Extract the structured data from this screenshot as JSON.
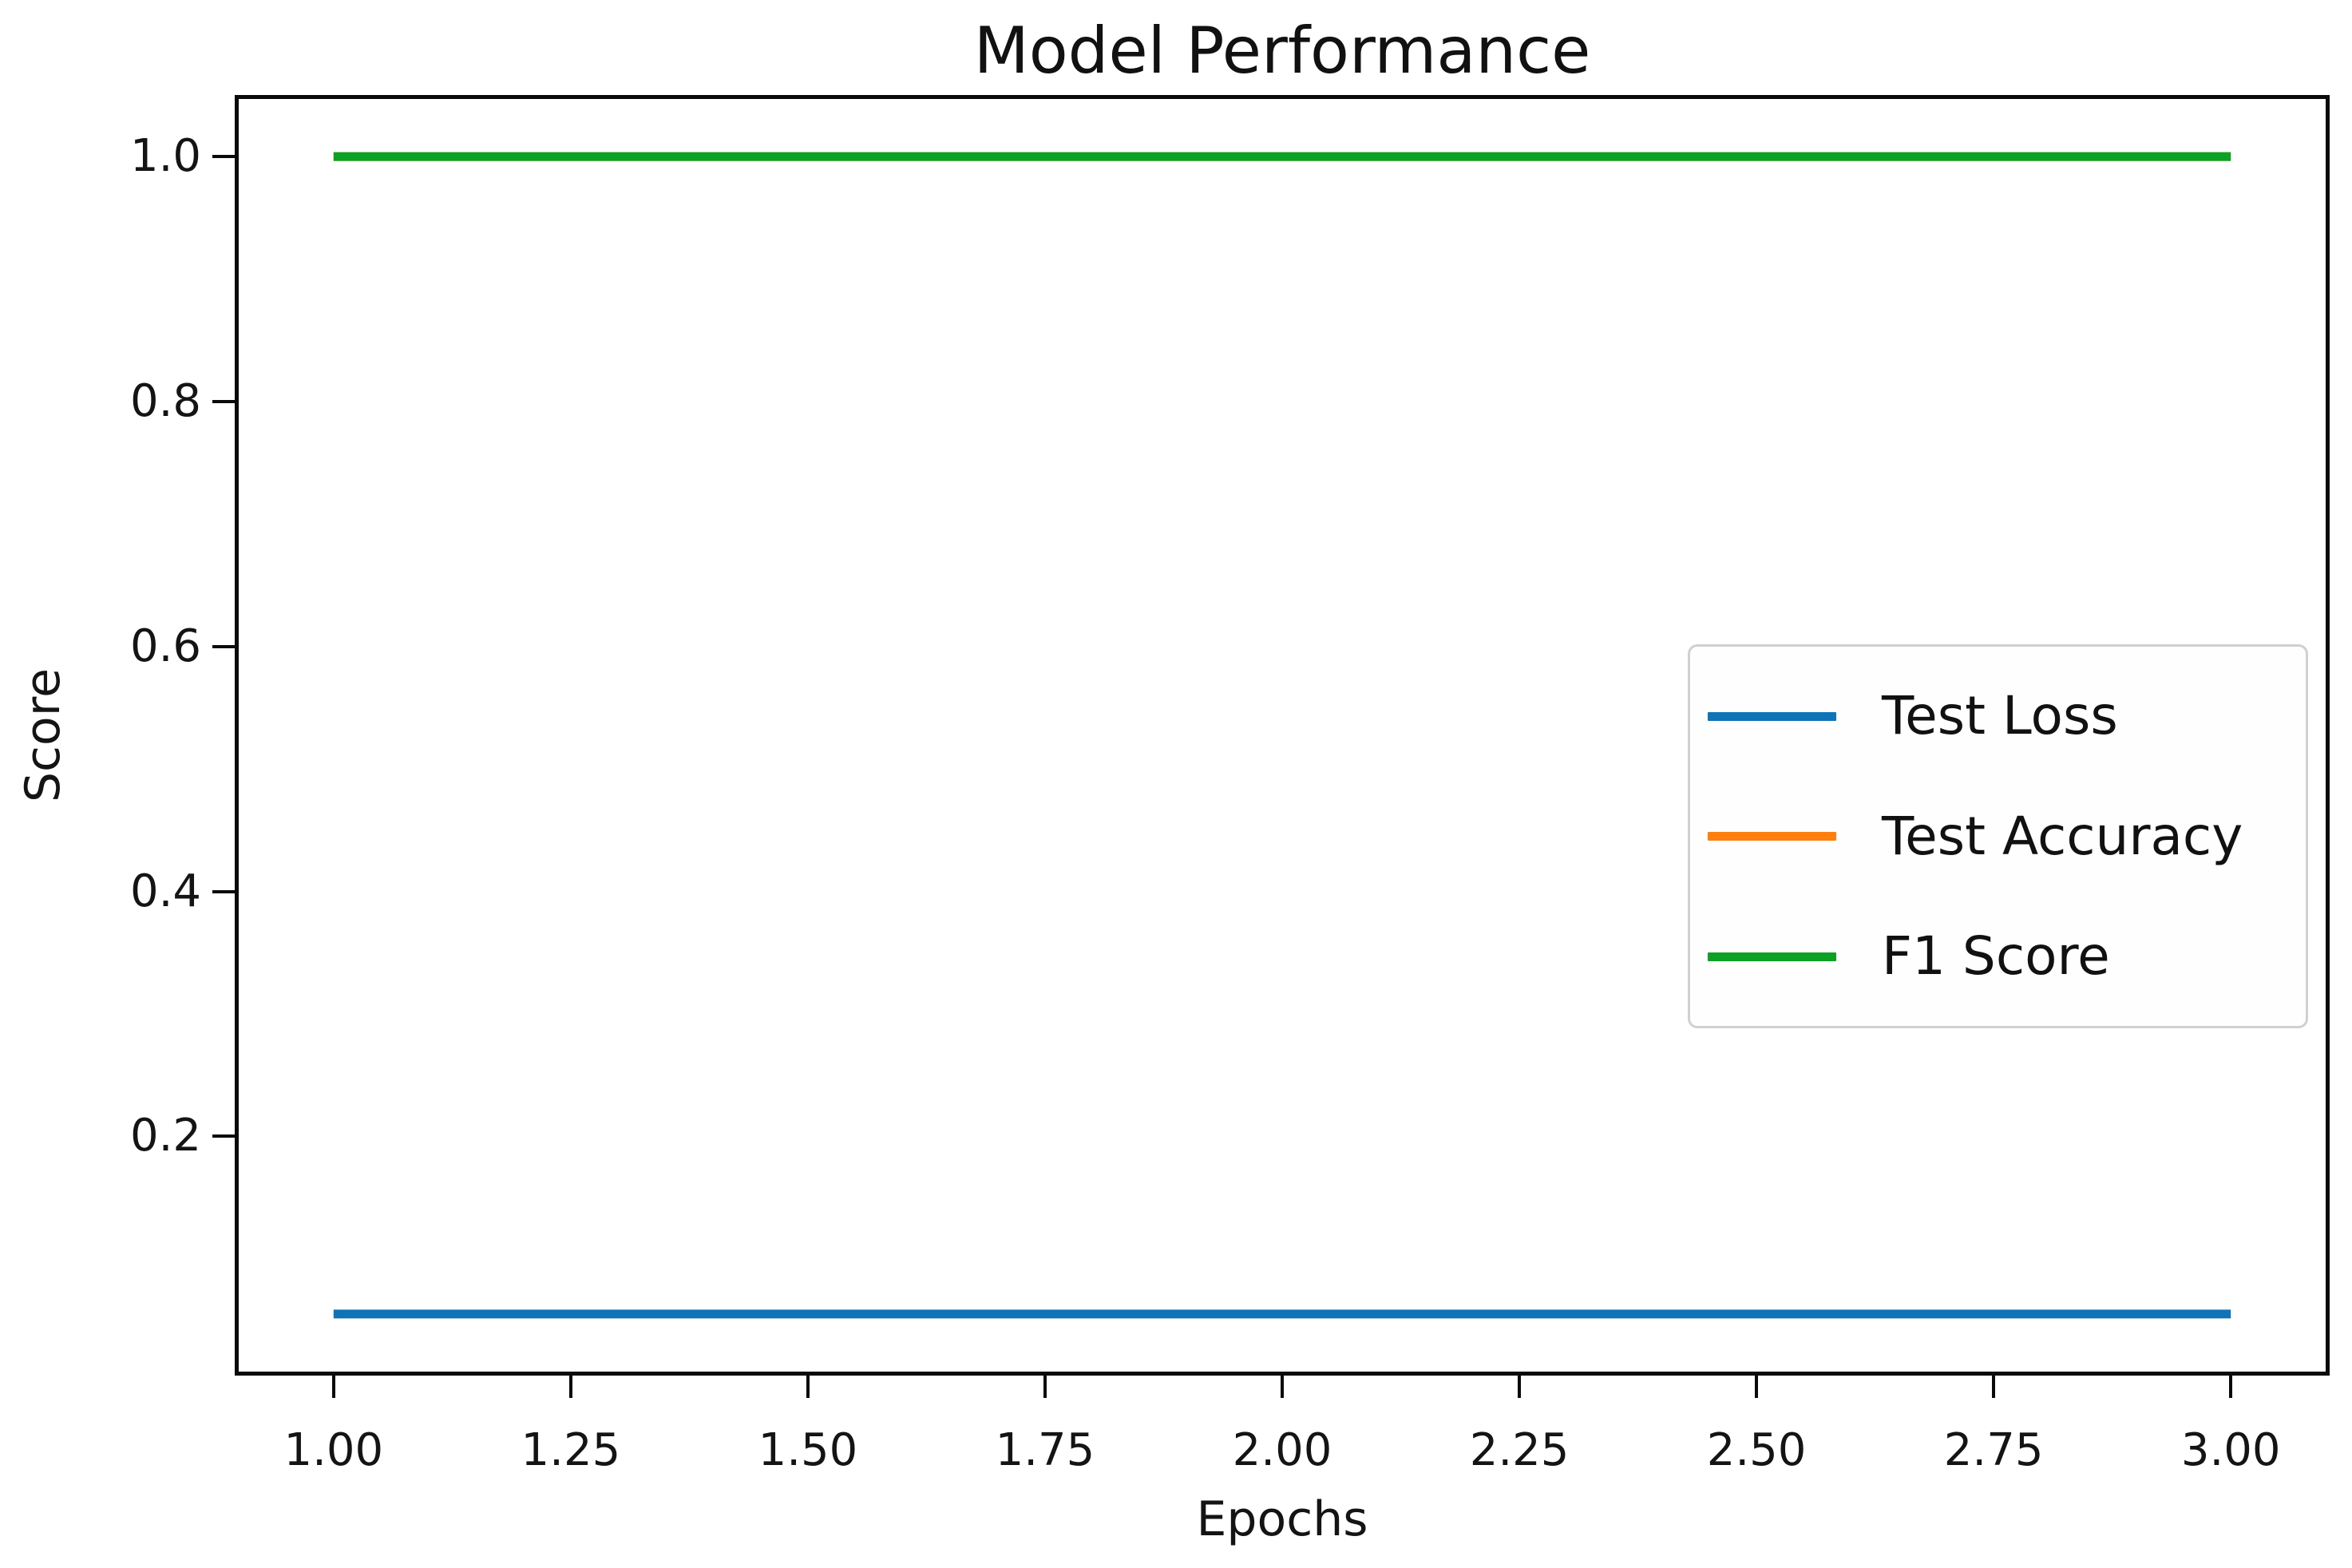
{
  "chart_data": {
    "type": "line",
    "title": "Model Performance",
    "xlabel": "Epochs",
    "ylabel": "Score",
    "x": [
      1,
      2,
      3
    ],
    "series": [
      {
        "name": "Test Loss",
        "color": "#0e74b5",
        "values": [
          0.055,
          0.055,
          0.055
        ]
      },
      {
        "name": "Test Accuracy",
        "color": "#ff7f0e",
        "values": [
          1.0,
          1.0,
          1.0
        ]
      },
      {
        "name": "F1 Score",
        "color": "#0ba125",
        "values": [
          1.0,
          1.0,
          1.0
        ]
      }
    ],
    "x_ticks": [
      "1.00",
      "1.25",
      "1.50",
      "1.75",
      "2.00",
      "2.25",
      "2.50",
      "2.75",
      "3.00"
    ],
    "x_tick_values": [
      1.0,
      1.25,
      1.5,
      1.75,
      2.0,
      2.25,
      2.5,
      2.75,
      3.0
    ],
    "y_ticks": [
      "0.2",
      "0.4",
      "0.6",
      "0.8",
      "1.0"
    ],
    "y_tick_values": [
      0.2,
      0.4,
      0.6,
      0.8,
      1.0
    ],
    "xlim": [
      0.9,
      3.1
    ],
    "ylim": [
      0.008,
      1.047
    ],
    "grid": false,
    "line_width": 11,
    "legend_position": "center-right",
    "colors": {
      "spine": "#0a0a0a",
      "text": "#141414",
      "legend_border": "#d0d0d0",
      "background": "#ffffff"
    }
  }
}
